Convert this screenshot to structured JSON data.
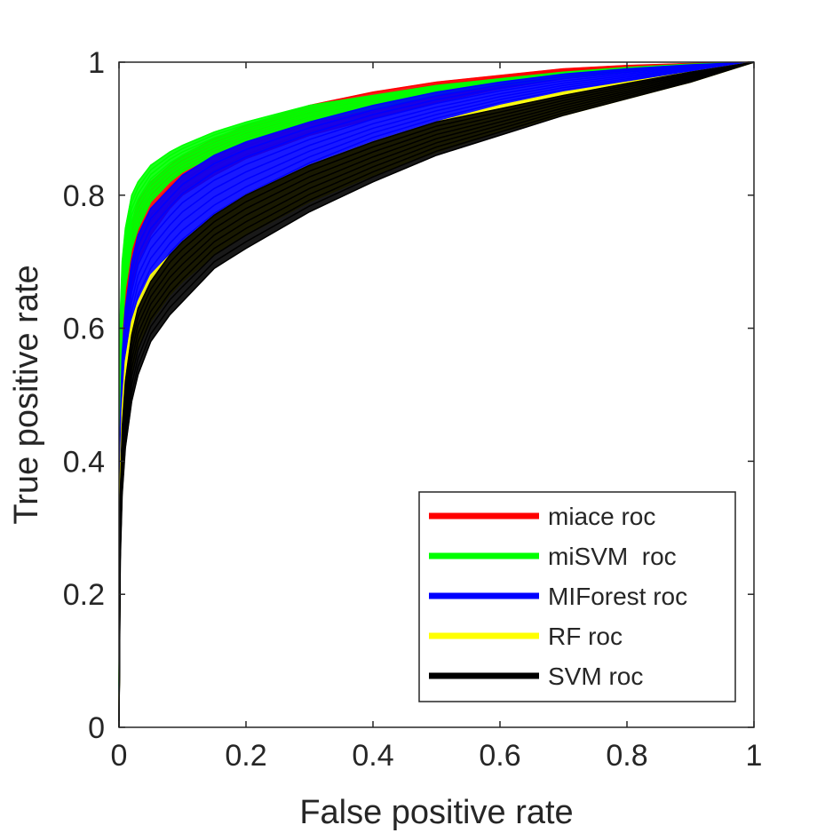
{
  "chart_data": {
    "type": "line",
    "title": "",
    "xlabel": "False positive rate",
    "ylabel": "True positive rate",
    "xlim": [
      0,
      1
    ],
    "ylim": [
      0,
      1
    ],
    "xticks": [
      0,
      0.2,
      0.4,
      0.6,
      0.8,
      1
    ],
    "yticks": [
      0,
      0.2,
      0.4,
      0.6,
      0.8,
      1
    ],
    "xtick_labels": [
      "0",
      "0.2",
      "0.4",
      "0.6",
      "0.8",
      "1"
    ],
    "ytick_labels": [
      "0",
      "0.2",
      "0.4",
      "0.6",
      "0.8",
      "1"
    ],
    "grid": false,
    "legend_position": "bottom-right",
    "description_of_bands": "Each method is shown as a bundle of many ROC curves between a lower and upper envelope.",
    "x": [
      0,
      0.002,
      0.005,
      0.01,
      0.02,
      0.03,
      0.05,
      0.08,
      0.1,
      0.15,
      0.2,
      0.3,
      0.4,
      0.5,
      0.6,
      0.7,
      0.8,
      0.9,
      1.0
    ],
    "series": [
      {
        "name": "miace roc",
        "color": "#ff0000",
        "lower": [
          0,
          0.45,
          0.55,
          0.6,
          0.66,
          0.7,
          0.74,
          0.78,
          0.8,
          0.83,
          0.855,
          0.89,
          0.915,
          0.94,
          0.96,
          0.975,
          0.985,
          0.995,
          1.0
        ],
        "upper": [
          0,
          0.55,
          0.64,
          0.7,
          0.76,
          0.79,
          0.82,
          0.845,
          0.86,
          0.885,
          0.905,
          0.935,
          0.955,
          0.97,
          0.98,
          0.99,
          0.995,
          0.998,
          1.0
        ]
      },
      {
        "name": "miSVM  roc",
        "color": "#00ff00",
        "lower": [
          0,
          0.5,
          0.6,
          0.66,
          0.72,
          0.75,
          0.79,
          0.82,
          0.835,
          0.86,
          0.88,
          0.91,
          0.93,
          0.95,
          0.965,
          0.975,
          0.985,
          0.993,
          1.0
        ],
        "upper": [
          0,
          0.62,
          0.7,
          0.75,
          0.8,
          0.82,
          0.845,
          0.865,
          0.875,
          0.895,
          0.91,
          0.935,
          0.95,
          0.965,
          0.975,
          0.985,
          0.992,
          0.997,
          1.0
        ]
      },
      {
        "name": "MIForest roc",
        "color": "#0000ff",
        "lower": [
          0,
          0.35,
          0.45,
          0.52,
          0.58,
          0.62,
          0.66,
          0.7,
          0.72,
          0.76,
          0.79,
          0.84,
          0.88,
          0.91,
          0.935,
          0.955,
          0.97,
          0.985,
          1.0
        ],
        "upper": [
          0,
          0.45,
          0.56,
          0.63,
          0.7,
          0.74,
          0.78,
          0.81,
          0.83,
          0.86,
          0.88,
          0.91,
          0.935,
          0.955,
          0.97,
          0.982,
          0.99,
          0.996,
          1.0
        ]
      },
      {
        "name": "RF roc",
        "color": "#ffff00",
        "lower": [
          0,
          0.3,
          0.4,
          0.47,
          0.53,
          0.57,
          0.61,
          0.65,
          0.67,
          0.71,
          0.74,
          0.79,
          0.83,
          0.865,
          0.895,
          0.92,
          0.945,
          0.97,
          1.0
        ],
        "upper": [
          0,
          0.38,
          0.48,
          0.55,
          0.61,
          0.64,
          0.68,
          0.71,
          0.73,
          0.77,
          0.8,
          0.845,
          0.88,
          0.91,
          0.935,
          0.955,
          0.97,
          0.985,
          1.0
        ]
      },
      {
        "name": "SVM roc",
        "color": "#000000",
        "lower": [
          0,
          0.25,
          0.35,
          0.42,
          0.49,
          0.53,
          0.58,
          0.62,
          0.64,
          0.69,
          0.72,
          0.775,
          0.82,
          0.86,
          0.89,
          0.92,
          0.945,
          0.97,
          1.0
        ],
        "upper": [
          0,
          0.35,
          0.45,
          0.52,
          0.59,
          0.63,
          0.67,
          0.71,
          0.73,
          0.77,
          0.8,
          0.845,
          0.88,
          0.91,
          0.93,
          0.95,
          0.968,
          0.985,
          1.0
        ]
      }
    ]
  }
}
